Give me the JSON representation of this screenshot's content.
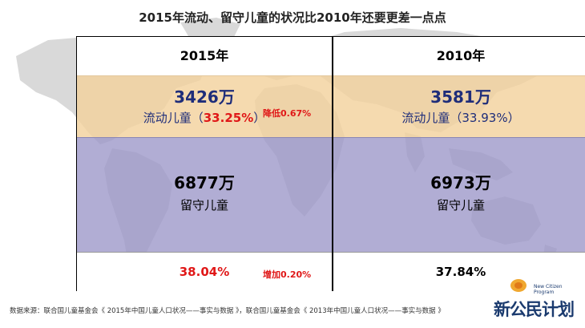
{
  "title": "2015年流动、留守儿童的状况比2010年还要更差一点点",
  "panels": {
    "y2015": {
      "year": "2015年",
      "flow_count": "3426万",
      "flow_label_prefix": "流动儿童（",
      "flow_pct": "33.25%",
      "flow_label_suffix": "）",
      "left_count": "6877万",
      "left_label": "留守儿童",
      "left_pct": "38.04%"
    },
    "y2010": {
      "year": "2010年",
      "flow_count": "3581万",
      "flow_label": "流动儿童（33.93%）",
      "left_count": "6973万",
      "left_label": "留守儿童",
      "left_pct": "37.84%"
    }
  },
  "changes": {
    "flow": "降低0.67%",
    "left": "增加0.20%"
  },
  "source": "数据来源：联合国儿童基金会《 2015年中国儿童人口状况——事实与数据 》，联合国儿童基金会《 2013年中国儿童人口状况——事实与数据 》",
  "logo": {
    "text": "新公民计划",
    "sub_line1": "New Citizen",
    "sub_line2": "Program"
  },
  "colors": {
    "flow_bg": "#f3d29e",
    "left_bg": "#9b96c8",
    "highlight_red": "#e01818",
    "text_blue": "#1e2d7a"
  }
}
